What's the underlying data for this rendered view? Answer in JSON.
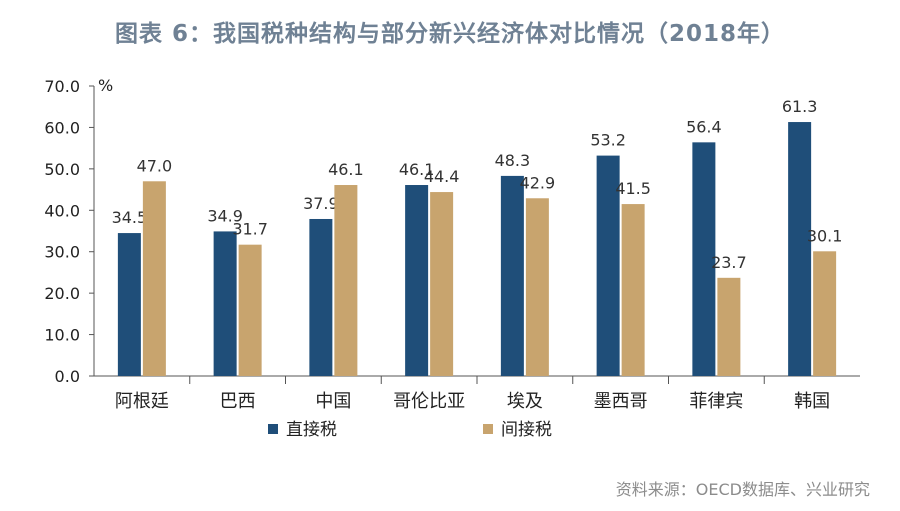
{
  "title": "图表 6：我国税种结构与部分新兴经济体对比情况（2018年）",
  "source": "资料来源：OECD数据库、兴业研究",
  "chart_data": {
    "type": "bar",
    "unit": "%",
    "categories": [
      "阿根廷",
      "巴西",
      "中国",
      "哥伦比亚",
      "埃及",
      "墨西哥",
      "菲律宾",
      "韩国"
    ],
    "series": [
      {
        "name": "直接税",
        "color": "#1f4e79",
        "values": [
          34.5,
          34.9,
          37.9,
          46.1,
          48.3,
          53.2,
          56.4,
          61.3
        ]
      },
      {
        "name": "间接税",
        "color": "#c8a46e",
        "values": [
          47.0,
          31.7,
          46.1,
          44.4,
          42.9,
          41.5,
          23.7,
          30.1
        ]
      }
    ],
    "ylim": [
      0,
      70
    ],
    "yticks": [
      "0.0",
      "10.0",
      "20.0",
      "30.0",
      "40.0",
      "50.0",
      "60.0",
      "70.0"
    ],
    "legend_position": "bottom-left",
    "grid": false
  }
}
